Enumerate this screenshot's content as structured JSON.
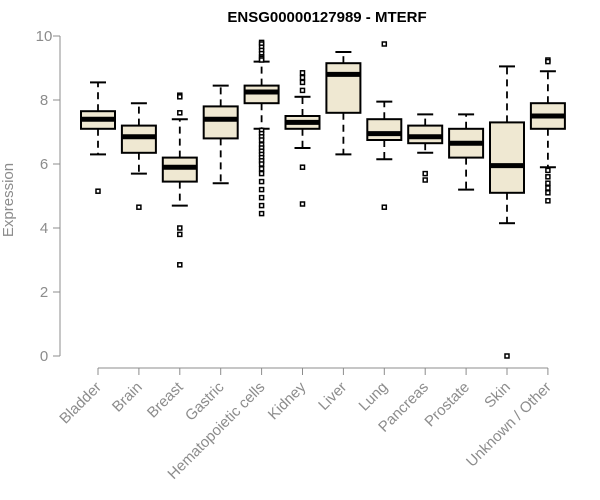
{
  "chart_data": {
    "type": "boxplot",
    "title": "ENSG00000127989 - MTERF",
    "xlabel": "",
    "ylabel": "Expression",
    "ylim": [
      0,
      10
    ],
    "yticks": [
      0,
      2,
      4,
      6,
      8,
      10
    ],
    "grid": false,
    "legend": "none",
    "colors": {
      "box_fill": "#efe8d2",
      "box_stroke": "#000000",
      "axis": "#8c8c8c"
    },
    "categories": [
      "Bladder",
      "Brain",
      "Breast",
      "Gastric",
      "Hematopoietic cells",
      "Kidney",
      "Liver",
      "Lung",
      "Pancreas",
      "Prostate",
      "Skin",
      "Unknown / Other"
    ],
    "boxes": [
      {
        "category": "Bladder",
        "min": 6.3,
        "q1": 7.1,
        "median": 7.4,
        "q3": 7.65,
        "max": 8.55,
        "outliers": [
          5.15
        ]
      },
      {
        "category": "Brain",
        "min": 5.7,
        "q1": 6.35,
        "median": 6.85,
        "q3": 7.2,
        "max": 7.9,
        "outliers": [
          4.65
        ]
      },
      {
        "category": "Breast",
        "min": 4.7,
        "q1": 5.45,
        "median": 5.9,
        "q3": 6.2,
        "max": 7.4,
        "outliers": [
          8.15,
          8.1,
          7.6,
          4.0,
          3.8,
          2.85
        ]
      },
      {
        "category": "Gastric",
        "min": 5.4,
        "q1": 6.8,
        "median": 7.4,
        "q3": 7.8,
        "max": 8.45,
        "outliers": []
      },
      {
        "category": "Hematopoietic cells",
        "min": 7.1,
        "q1": 7.9,
        "median": 8.25,
        "q3": 8.45,
        "max": 9.2,
        "outliers": [
          9.8,
          9.75,
          9.65,
          9.55,
          9.45,
          9.35,
          9.3,
          9.25,
          7.05,
          6.95,
          6.85,
          6.75,
          6.6,
          6.5,
          6.4,
          6.3,
          6.2,
          6.1,
          6.0,
          5.85,
          5.7,
          5.45,
          5.2,
          4.95,
          4.7,
          4.45
        ]
      },
      {
        "category": "Kidney",
        "min": 6.5,
        "q1": 7.1,
        "median": 7.3,
        "q3": 7.5,
        "max": 8.1,
        "outliers": [
          8.85,
          8.7,
          8.55,
          8.3,
          5.9,
          4.75
        ]
      },
      {
        "category": "Liver",
        "min": 6.3,
        "q1": 7.6,
        "median": 8.8,
        "q3": 9.15,
        "max": 9.5,
        "outliers": []
      },
      {
        "category": "Lung",
        "min": 6.15,
        "q1": 6.75,
        "median": 6.95,
        "q3": 7.4,
        "max": 7.95,
        "outliers": [
          9.75,
          4.65
        ]
      },
      {
        "category": "Pancreas",
        "min": 6.35,
        "q1": 6.65,
        "median": 6.85,
        "q3": 7.2,
        "max": 7.55,
        "outliers": [
          5.7,
          5.5
        ]
      },
      {
        "category": "Prostate",
        "min": 5.2,
        "q1": 6.2,
        "median": 6.65,
        "q3": 7.1,
        "max": 7.55,
        "outliers": []
      },
      {
        "category": "Skin",
        "min": 4.15,
        "q1": 5.1,
        "median": 5.95,
        "q3": 7.3,
        "max": 9.05,
        "outliers": [
          0.0
        ]
      },
      {
        "category": "Unknown / Other",
        "min": 5.9,
        "q1": 7.1,
        "median": 7.5,
        "q3": 7.9,
        "max": 8.9,
        "outliers": [
          9.25,
          9.2,
          5.8,
          5.6,
          5.4,
          5.25,
          5.1,
          4.85
        ]
      }
    ]
  }
}
